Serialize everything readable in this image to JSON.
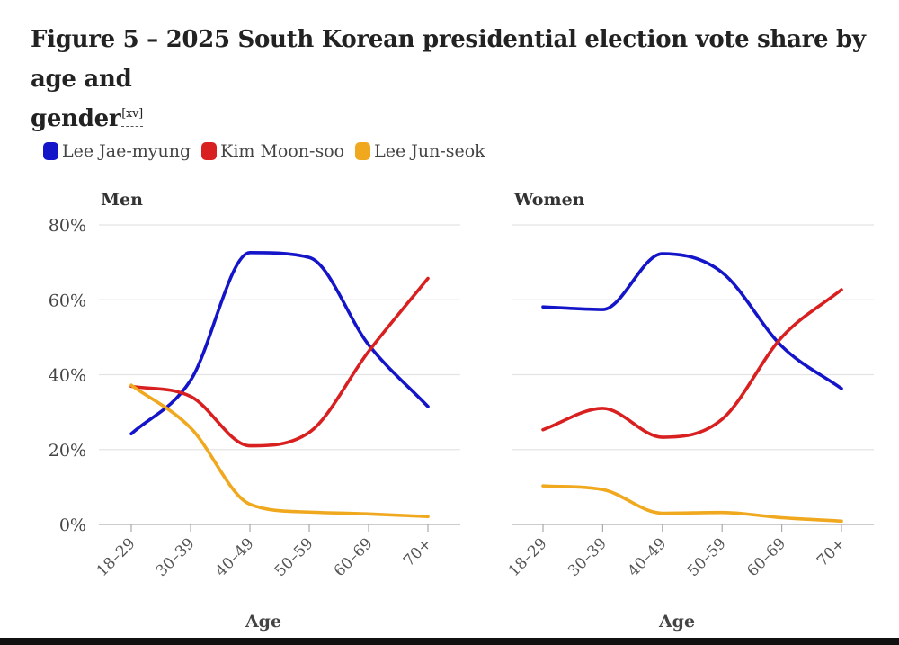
{
  "figure": {
    "title": "Figure 5 – 2025 South Korean presidential election vote share by age and",
    "title_line2": "gender",
    "ref": "[xv]"
  },
  "legend": [
    {
      "label": "Lee Jae-myung",
      "color": "#1414c8"
    },
    {
      "label": "Kim Moon-soo",
      "color": "#d92020"
    },
    {
      "label": "Lee Jun-seok",
      "color": "#f0a81e"
    }
  ],
  "chart_data": [
    {
      "type": "line",
      "panel": "Men",
      "title": "Men",
      "xlabel": "Age",
      "ylabel": "",
      "categories": [
        "18–29",
        "30–39",
        "40–49",
        "50–59",
        "60–69",
        "70+"
      ],
      "ylim": [
        0,
        80
      ],
      "yticks": [
        "0%",
        "20%",
        "40%",
        "60%",
        "80%"
      ],
      "grid": true,
      "series": [
        {
          "name": "Lee Jae-myung",
          "color": "#1414c8",
          "values": [
            24.2,
            38.5,
            72.6,
            71.3,
            48.0,
            31.5
          ]
        },
        {
          "name": "Kim Moon-soo",
          "color": "#d92020",
          "values": [
            36.9,
            34.2,
            21.0,
            24.6,
            46.2,
            65.7
          ]
        },
        {
          "name": "Lee Jun-seok",
          "color": "#f0a81e",
          "values": [
            37.2,
            25.8,
            5.4,
            3.3,
            2.8,
            2.1
          ]
        }
      ]
    },
    {
      "type": "line",
      "panel": "Women",
      "title": "Women",
      "xlabel": "Age",
      "ylabel": "",
      "categories": [
        "18–29",
        "30–39",
        "40–49",
        "50–59",
        "60–69",
        "70+"
      ],
      "ylim": [
        0,
        80
      ],
      "yticks": [
        "0%",
        "20%",
        "40%",
        "60%",
        "80%"
      ],
      "grid": true,
      "series": [
        {
          "name": "Lee Jae-myung",
          "color": "#1414c8",
          "values": [
            58.1,
            57.4,
            72.3,
            67.3,
            47.6,
            36.3
          ]
        },
        {
          "name": "Kim Moon-soo",
          "color": "#d92020",
          "values": [
            25.3,
            31.0,
            23.3,
            28.1,
            50.0,
            62.7
          ]
        },
        {
          "name": "Lee Jun-seok",
          "color": "#f0a81e",
          "values": [
            10.3,
            9.3,
            3.0,
            3.2,
            1.8,
            0.9
          ]
        }
      ]
    }
  ]
}
